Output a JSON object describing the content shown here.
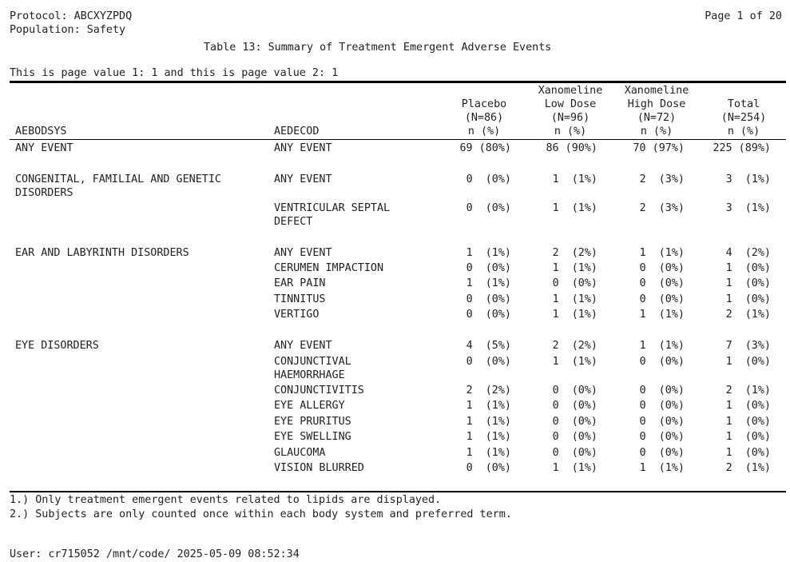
{
  "header": {
    "protocol": "Protocol: ABCXYZPDQ",
    "population": "Population: Safety",
    "page": "Page 1 of 20",
    "title": "Table 13: Summary of Treatment Emergent Adverse Events",
    "page_values": "This is page value 1: 1 and this is page value 2: 1"
  },
  "columns": {
    "soc": "AEBODSYS",
    "pt": "AEDECOD",
    "groups": [
      {
        "line1": "",
        "line2": "Placebo",
        "n": "(N=86)",
        "stat": "n (%)"
      },
      {
        "line1": "Xanomeline",
        "line2": "Low Dose",
        "n": "(N=96)",
        "stat": "n (%)"
      },
      {
        "line1": "Xanomeline",
        "line2": "High Dose",
        "n": "(N=72)",
        "stat": "n (%)"
      },
      {
        "line1": "",
        "line2": "Total",
        "n": "(N=254)",
        "stat": "n (%)"
      }
    ]
  },
  "rows": [
    {
      "soc": "ANY EVENT",
      "pt": "ANY EVENT",
      "v": [
        "69 (80%)",
        "86 (90%)",
        "70 (97%)",
        "225 (89%)"
      ]
    },
    {
      "soc": "CONGENITAL, FAMILIAL AND GENETIC\nDISORDERS",
      "pt": "ANY EVENT",
      "v": [
        "0  (0%)",
        "1  (1%)",
        "2  (3%)",
        "3  (1%)"
      ]
    },
    {
      "soc": "",
      "pt": "VENTRICULAR SEPTAL\nDEFECT",
      "v": [
        "0  (0%)",
        "1  (1%)",
        "2  (3%)",
        "3  (1%)"
      ]
    },
    {
      "soc": "EAR AND LABYRINTH DISORDERS",
      "pt": "ANY EVENT",
      "v": [
        "1  (1%)",
        "2  (2%)",
        "1  (1%)",
        "4  (2%)"
      ]
    },
    {
      "soc": "",
      "pt": "CERUMEN IMPACTION",
      "v": [
        "0  (0%)",
        "1  (1%)",
        "0  (0%)",
        "1  (0%)"
      ]
    },
    {
      "soc": "",
      "pt": "EAR PAIN",
      "v": [
        "1  (1%)",
        "0  (0%)",
        "0  (0%)",
        "1  (0%)"
      ]
    },
    {
      "soc": "",
      "pt": "TINNITUS",
      "v": [
        "0  (0%)",
        "1  (1%)",
        "0  (0%)",
        "1  (0%)"
      ]
    },
    {
      "soc": "",
      "pt": "VERTIGO",
      "v": [
        "0  (0%)",
        "1  (1%)",
        "1  (1%)",
        "2  (1%)"
      ]
    },
    {
      "soc": "EYE DISORDERS",
      "pt": "ANY EVENT",
      "v": [
        "4  (5%)",
        "2  (2%)",
        "1  (1%)",
        "7  (3%)"
      ]
    },
    {
      "soc": "",
      "pt": "CONJUNCTIVAL\nHAEMORRHAGE",
      "v": [
        "0  (0%)",
        "1  (1%)",
        "0  (0%)",
        "1  (0%)"
      ]
    },
    {
      "soc": "",
      "pt": "CONJUNCTIVITIS",
      "v": [
        "2  (2%)",
        "0  (0%)",
        "0  (0%)",
        "2  (1%)"
      ]
    },
    {
      "soc": "",
      "pt": "EYE ALLERGY",
      "v": [
        "1  (1%)",
        "0  (0%)",
        "0  (0%)",
        "1  (0%)"
      ]
    },
    {
      "soc": "",
      "pt": "EYE PRURITUS",
      "v": [
        "1  (1%)",
        "0  (0%)",
        "0  (0%)",
        "1  (0%)"
      ]
    },
    {
      "soc": "",
      "pt": "EYE SWELLING",
      "v": [
        "1  (1%)",
        "0  (0%)",
        "0  (0%)",
        "1  (0%)"
      ]
    },
    {
      "soc": "",
      "pt": "GLAUCOMA",
      "v": [
        "1  (1%)",
        "0  (0%)",
        "0  (0%)",
        "1  (0%)"
      ]
    },
    {
      "soc": "",
      "pt": "VISION BLURRED",
      "v": [
        "0  (0%)",
        "1  (1%)",
        "1  (1%)",
        "2  (1%)"
      ]
    }
  ],
  "footnotes": [
    "1.) Only treatment emergent events related to lipids are displayed.",
    "2.) Subjects are only counted once within each body system and preferred term."
  ],
  "user_line": "User: cr715052 /mnt/code/ 2025-05-09 08:52:34"
}
